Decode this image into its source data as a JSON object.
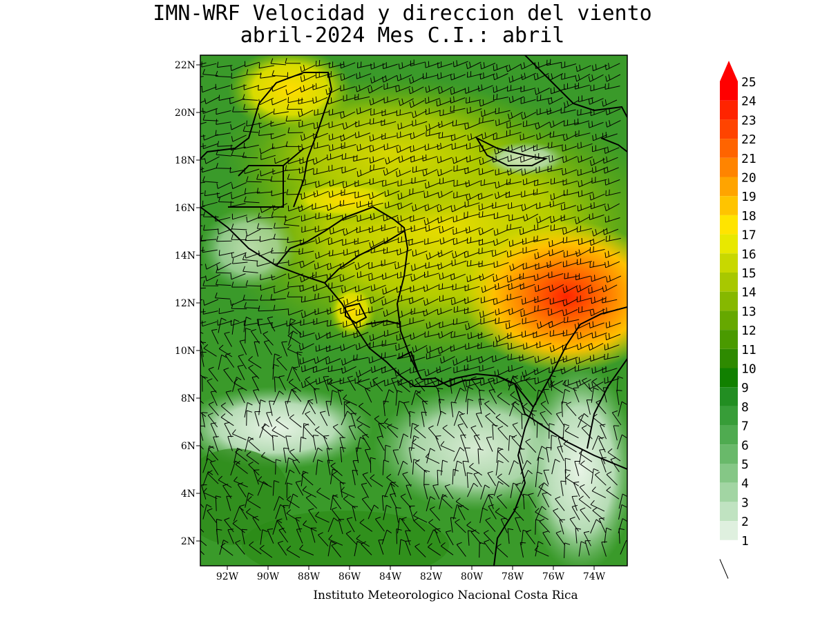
{
  "title_line1": "IMN-WRF Velocidad y direccion del viento",
  "title_line2": "abril-2024 Mes C.I.: abril",
  "credit": "Instituto Meteorologico Nacional Costa Rica",
  "map": {
    "lon_range": [
      -93.5,
      -72.5
    ],
    "lat_range": [
      1,
      22.5
    ],
    "lat_labels": [
      "22N",
      "20N",
      "18N",
      "16N",
      "14N",
      "12N",
      "10N",
      "8N",
      "6N",
      "4N",
      "2N"
    ],
    "lon_labels": [
      "92W",
      "90W",
      "88W",
      "86W",
      "84W",
      "82W",
      "80W",
      "78W",
      "76W",
      "74W"
    ],
    "wind_units": "m/s (knots barbs)",
    "field_description_colors": {
      "ocean_base": "#3a9a2a",
      "caribbean_high": "#e8d400",
      "max_core": "#ff2000"
    }
  },
  "colorbar": {
    "levels": [
      "1",
      "2",
      "3",
      "4",
      "5",
      "6",
      "7",
      "8",
      "9",
      "10",
      "11",
      "12",
      "13",
      "14",
      "15",
      "16",
      "17",
      "18",
      "19",
      "20",
      "21",
      "22",
      "23",
      "24",
      "25"
    ],
    "colors": [
      "#ffffff",
      "#dff0df",
      "#c0e3c1",
      "#a2d5a3",
      "#85c786",
      "#69b96a",
      "#4fab50",
      "#379d38",
      "#228e22",
      "#118000",
      "#2e8a00",
      "#4a9a00",
      "#66a800",
      "#86b800",
      "#a8c800",
      "#c8d800",
      "#e8e800",
      "#ffe400",
      "#ffc400",
      "#ffa400",
      "#ff8400",
      "#ff6400",
      "#ff4400",
      "#ff2400",
      "#ff0000"
    ]
  }
}
